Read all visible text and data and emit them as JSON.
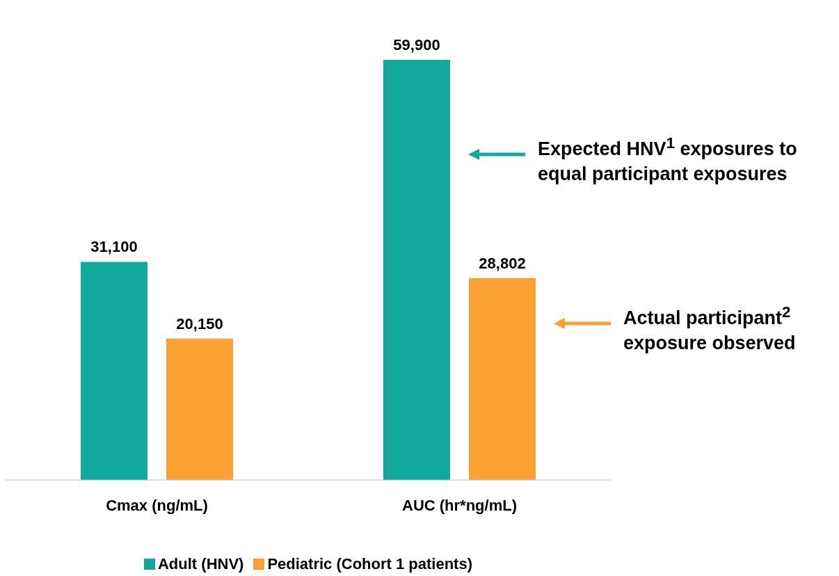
{
  "chart_data": {
    "type": "bar",
    "categories": [
      "Cmax (ng/mL)",
      "AUC (hr*ng/mL)"
    ],
    "series": [
      {
        "name": "Adult (HNV)",
        "color": "#12a89d",
        "values": [
          31100,
          59900
        ],
        "value_labels": [
          "31,100",
          "59,900"
        ]
      },
      {
        "name": "Pediatric (Cohort 1 patients)",
        "color": "#f9a132",
        "values": [
          20150,
          28802
        ],
        "value_labels": [
          "20,150",
          "28,802"
        ]
      }
    ],
    "legend": "bottom",
    "annotations": [
      "Expected HNV$^{1}$ exposures to equal participant exposures",
      "Actual participant$^{2}$ exposure observed"
    ]
  }
}
